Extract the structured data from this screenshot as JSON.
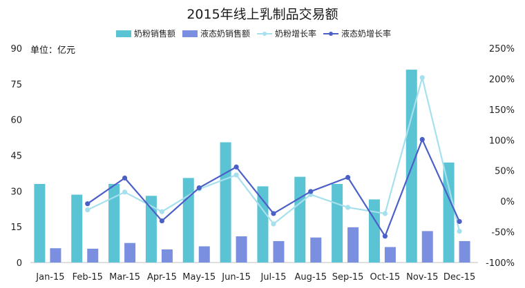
{
  "chart_data": {
    "type": "bar",
    "title": "2015年线上乳制品交易额",
    "unit_label": "单位：亿元",
    "categories": [
      "Jan-15",
      "Feb-15",
      "Mar-15",
      "Apr-15",
      "May-15",
      "Jun-15",
      "Jul-15",
      "Aug-15",
      "Sep-15",
      "Oct-15",
      "Nov-15",
      "Dec-15"
    ],
    "y_left": {
      "ticks": [
        "0",
        "15",
        "30",
        "45",
        "60",
        "75",
        "90"
      ],
      "ylim": [
        0,
        90
      ]
    },
    "y_right": {
      "ticks": [
        "-100%",
        "-50%",
        "0%",
        "50%",
        "100%",
        "150%",
        "200%",
        "250%"
      ],
      "ylim": [
        -100,
        250
      ]
    },
    "series": [
      {
        "name": "奶粉销售额",
        "kind": "bar",
        "axis": "left",
        "color": "#5bc4d4",
        "values": [
          33,
          28.5,
          33,
          28,
          35.5,
          50.5,
          32,
          36,
          33,
          26.5,
          81,
          42
        ]
      },
      {
        "name": "液态奶销售额",
        "kind": "bar",
        "axis": "left",
        "color": "#7b8fe0",
        "values": [
          6,
          5.8,
          8.2,
          5.5,
          6.8,
          11,
          9,
          10.5,
          14.8,
          6.5,
          13.2,
          9
        ]
      },
      {
        "name": "奶粉增长率",
        "kind": "line",
        "axis": "right",
        "color": "#a6e0ec",
        "values": [
          null,
          -14,
          15,
          -17,
          20,
          43,
          -37,
          11,
          -10,
          -20,
          202,
          -49
        ]
      },
      {
        "name": "液态奶增长率",
        "kind": "line",
        "axis": "right",
        "color": "#4a5fc7",
        "values": [
          null,
          -4,
          38,
          -32,
          22,
          56,
          -20,
          16,
          39,
          -57,
          101,
          -33
        ]
      }
    ],
    "grid": false,
    "legend_position": "top"
  }
}
